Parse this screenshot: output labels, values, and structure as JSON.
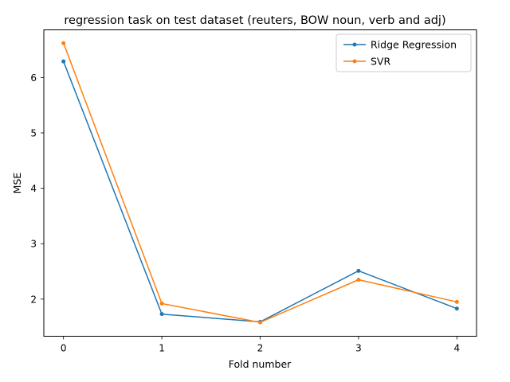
{
  "chart_data": {
    "type": "line",
    "title": "regression task on test dataset (reuters, BOW noun, verb and adj)",
    "xlabel": "Fold number",
    "ylabel": "MSE",
    "x": [
      0,
      1,
      2,
      3,
      4
    ],
    "xticks": [
      0,
      1,
      2,
      3,
      4
    ],
    "yticks": [
      2,
      3,
      4,
      5,
      6
    ],
    "xlim": [
      -0.2,
      4.2
    ],
    "ylim": [
      1.33,
      6.86
    ],
    "grid": false,
    "legend_position": "upper right",
    "series": [
      {
        "name": "Ridge Regression",
        "color": "#1f77b4",
        "values": [
          6.29,
          1.73,
          1.59,
          2.51,
          1.83
        ]
      },
      {
        "name": "SVR",
        "color": "#ff7f0e",
        "values": [
          6.62,
          1.92,
          1.58,
          2.35,
          1.95
        ]
      }
    ]
  }
}
